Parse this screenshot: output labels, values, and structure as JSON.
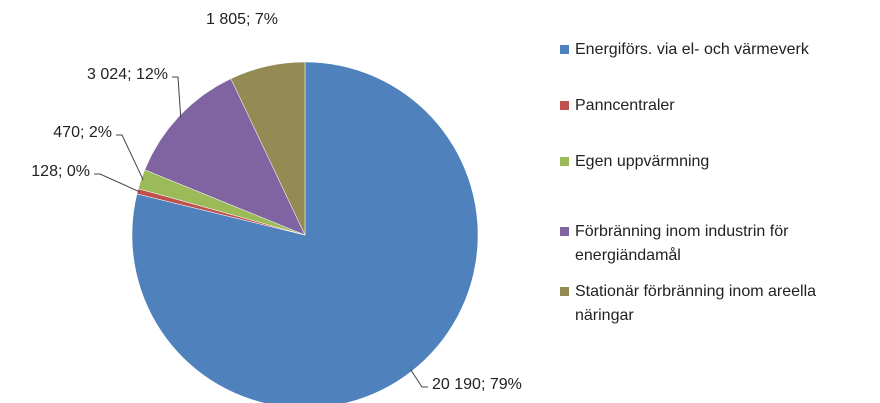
{
  "chart_data": {
    "type": "pie",
    "categories": [
      "Energiförs. via el- och värmeverk",
      "Panncentraler",
      "Egen uppvärmning",
      "Förbränning inom industrin för energiändamål",
      "Stationär förbränning inom areella näringar"
    ],
    "values": [
      20190,
      128,
      470,
      3024,
      1805
    ],
    "value_labels": [
      "20 190; 79%",
      "128; 0%",
      "470; 2%",
      "3 024; 12%",
      "1 805; 7%"
    ],
    "colors": [
      "#4f81bd",
      "#c0504d",
      "#9bbb59",
      "#8064a2",
      "#948a54"
    ],
    "legend": "right"
  }
}
